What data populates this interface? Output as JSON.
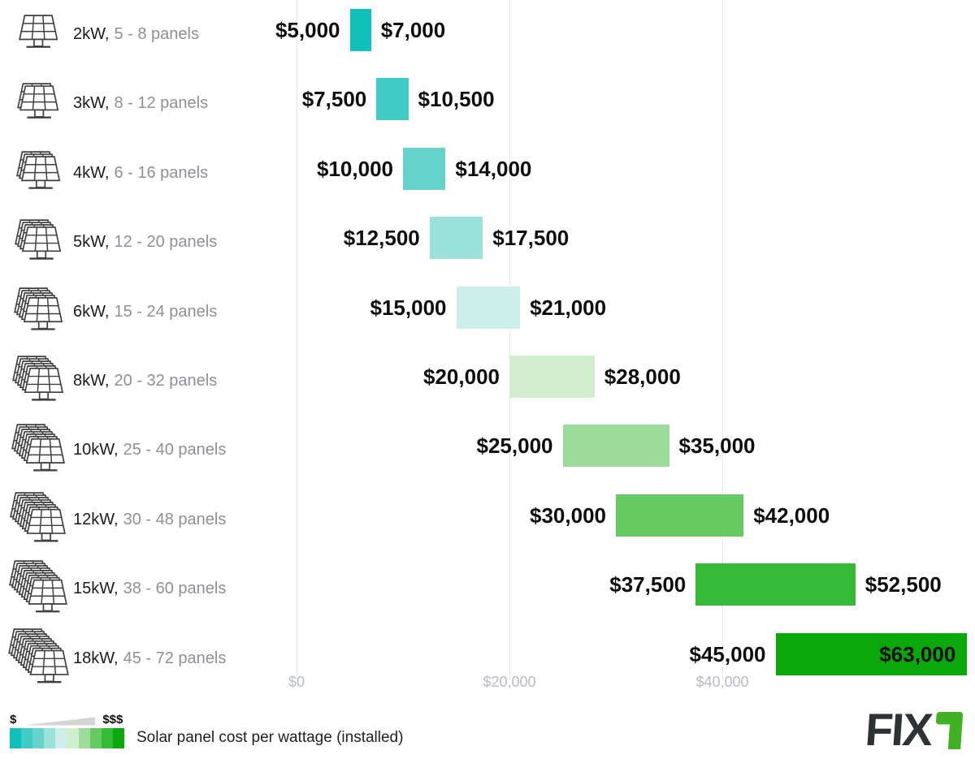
{
  "chart_data": {
    "type": "bar",
    "subtype": "horizontal-range",
    "title": "Solar panel cost per wattage (installed)",
    "x_ticks": [
      {
        "label": "$0",
        "value": 0
      },
      {
        "label": "$20,000",
        "value": 20000
      },
      {
        "label": "$40,000",
        "value": 40000
      }
    ],
    "x_range": [
      0,
      63800
    ],
    "grid": true,
    "rows": [
      {
        "system": "2kW,",
        "panels": "5 - 8 panels",
        "min": 5000,
        "max": 7000,
        "min_label": "$5,000",
        "max_label": "$7,000",
        "color": "#0fc0bb",
        "stack_count": 1,
        "max_label_inside": false
      },
      {
        "system": "3kW,",
        "panels": "8 - 12 panels",
        "min": 7500,
        "max": 10500,
        "min_label": "$7,500",
        "max_label": "$10,500",
        "color": "#41cbc5",
        "stack_count": 2,
        "max_label_inside": false
      },
      {
        "system": "4kW,",
        "panels": "6 - 16 panels",
        "min": 10000,
        "max": 14000,
        "min_label": "$10,000",
        "max_label": "$14,000",
        "color": "#65d2cb",
        "stack_count": 3,
        "max_label_inside": false
      },
      {
        "system": "5kW,",
        "panels": "12 - 20 panels",
        "min": 12500,
        "max": 17500,
        "min_label": "$12,500",
        "max_label": "$17,500",
        "color": "#9ae0db",
        "stack_count": 4,
        "max_label_inside": false
      },
      {
        "system": "6kW,",
        "panels": "15 - 24 panels",
        "min": 15000,
        "max": 21000,
        "min_label": "$15,000",
        "max_label": "$21,000",
        "color": "#ccefec",
        "stack_count": 5,
        "max_label_inside": false
      },
      {
        "system": "8kW,",
        "panels": "20 - 32 panels",
        "min": 20000,
        "max": 28000,
        "min_label": "$20,000",
        "max_label": "$28,000",
        "color": "#d1efcd",
        "stack_count": 6,
        "max_label_inside": false
      },
      {
        "system": "10kW,",
        "panels": "25 - 40 panels",
        "min": 25000,
        "max": 35000,
        "min_label": "$25,000",
        "max_label": "$35,000",
        "color": "#9cdb99",
        "stack_count": 7,
        "max_label_inside": false
      },
      {
        "system": "12kW,",
        "panels": "30 - 48 panels",
        "min": 30000,
        "max": 42000,
        "min_label": "$30,000",
        "max_label": "$42,000",
        "color": "#66ca62",
        "stack_count": 8,
        "max_label_inside": false
      },
      {
        "system": "15kW,",
        "panels": "38 - 60 panels",
        "min": 37500,
        "max": 52500,
        "min_label": "$37,500",
        "max_label": "$52,500",
        "color": "#35ba35",
        "stack_count": 9,
        "max_label_inside": false
      },
      {
        "system": "18kW,",
        "panels": "45 - 72 panels",
        "min": 45000,
        "max": 63000,
        "min_label": "$45,000",
        "max_label": "$63,000",
        "color": "#0ba80b",
        "stack_count": 10,
        "max_label_inside": true
      }
    ]
  },
  "legend": {
    "min_symbol": "$",
    "max_symbol": "$$$"
  },
  "logo": {
    "main": "FIX",
    "accent_letter": "r",
    "main_color": "#2d3234",
    "accent_color": "#3fb123"
  }
}
